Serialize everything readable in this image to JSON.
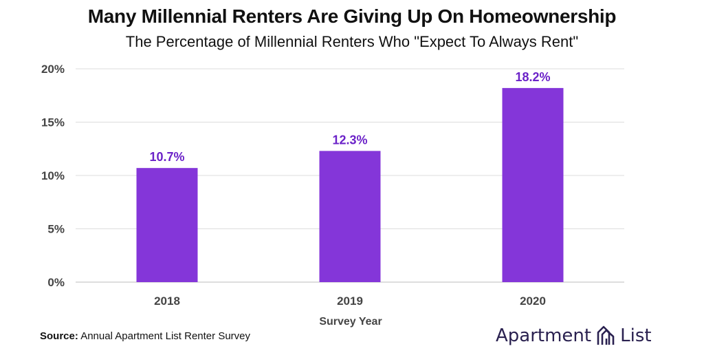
{
  "chart_data": {
    "type": "bar",
    "title": "Many Millennial Renters Are Giving Up On Homeownership",
    "subtitle": "The Percentage of Millennial Renters Who \"Expect To Always Rent\"",
    "xlabel": "Survey Year",
    "ylabel": "",
    "categories": [
      "2018",
      "2019",
      "2020"
    ],
    "values": [
      10.7,
      12.3,
      18.2
    ],
    "data_labels": [
      "10.7%",
      "12.3%",
      "18.2%"
    ],
    "ylim": [
      0,
      20
    ],
    "yticks": [
      0,
      5,
      10,
      15,
      20
    ],
    "ytick_labels": [
      "0%",
      "5%",
      "10%",
      "15%",
      "20%"
    ],
    "grid": true,
    "bar_color": "#8436d9",
    "label_color": "#6b22c8"
  },
  "source": {
    "label": "Source:",
    "text": "Annual Apartment List Renter Survey"
  },
  "logo": {
    "word1": "Apartment",
    "word2": "List",
    "icon": "building-logo-icon",
    "color": "#2a2150"
  }
}
